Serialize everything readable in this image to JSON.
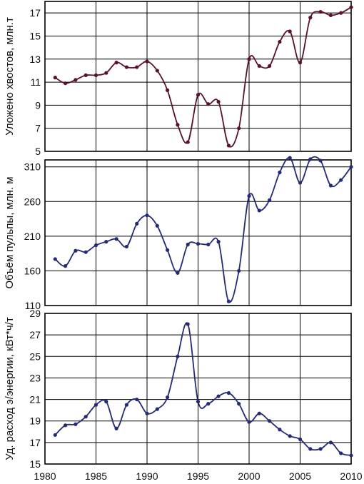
{
  "chart_data": [
    {
      "type": "line",
      "ylabel": "Уложено хвостов, млн.т",
      "ylim": [
        5,
        18
      ],
      "yticks": [
        5,
        7,
        9,
        11,
        13,
        15,
        17
      ],
      "xlim": [
        1980,
        2010
      ],
      "grid": true,
      "color": "#5a1030",
      "series": [
        {
          "x": [
            1981,
            1982,
            1983,
            1984,
            1985,
            1986,
            1987,
            1988,
            1989,
            1990,
            1991,
            1992,
            1993,
            1994,
            1995,
            1996,
            1997,
            1998,
            1999,
            2000,
            2001,
            2002,
            2003,
            2004,
            2005,
            2006,
            2007,
            2008,
            2009,
            2010
          ],
          "values": [
            11.4,
            10.9,
            11.2,
            11.6,
            11.6,
            11.8,
            12.7,
            12.3,
            12.3,
            12.8,
            12.0,
            10.3,
            7.3,
            5.8,
            9.9,
            9.1,
            9.3,
            5.5,
            7.0,
            13.0,
            12.4,
            12.4,
            14.5,
            15.4,
            12.7,
            16.6,
            17.1,
            16.8,
            17.0,
            17.5
          ]
        }
      ]
    },
    {
      "type": "line",
      "ylabel": "Объём пульпы, млн. м",
      "ylim": [
        110,
        320
      ],
      "yticks": [
        110,
        160,
        210,
        260,
        310
      ],
      "xlim": [
        1980,
        2010
      ],
      "grid": true,
      "color": "#252a75",
      "series": [
        {
          "x": [
            1981,
            1982,
            1983,
            1984,
            1985,
            1986,
            1987,
            1988,
            1989,
            1990,
            1991,
            1992,
            1993,
            1994,
            1995,
            1996,
            1997,
            1998,
            1999,
            2000,
            2001,
            2002,
            2003,
            2004,
            2005,
            2006,
            2007,
            2008,
            2009,
            2010
          ],
          "values": [
            177,
            167,
            189,
            187,
            197,
            202,
            206,
            195,
            228,
            240,
            225,
            190,
            157,
            198,
            199,
            198,
            202,
            116,
            160,
            268,
            247,
            262,
            302,
            323,
            287,
            321,
            319,
            283,
            291,
            310
          ]
        }
      ]
    },
    {
      "type": "line",
      "ylabel": "Уд. расход э/энергии, кВт*ч/т",
      "ylim": [
        15,
        29
      ],
      "yticks": [
        15,
        17,
        19,
        21,
        23,
        25,
        27,
        29
      ],
      "xlim": [
        1980,
        2010
      ],
      "xticks": [
        1980,
        1985,
        1990,
        1995,
        2000,
        2005,
        2010
      ],
      "grid": true,
      "color": "#252a75",
      "series": [
        {
          "x": [
            1981,
            1982,
            1983,
            1984,
            1985,
            1986,
            1987,
            1988,
            1989,
            1990,
            1991,
            1992,
            1993,
            1994,
            1995,
            1996,
            1997,
            1998,
            1999,
            2000,
            2001,
            2002,
            2003,
            2004,
            2005,
            2006,
            2007,
            2008,
            2009,
            2010
          ],
          "values": [
            17.7,
            18.6,
            18.7,
            19.4,
            20.5,
            20.8,
            18.3,
            20.5,
            21.0,
            19.7,
            20.1,
            21.2,
            25.0,
            28.0,
            20.8,
            20.6,
            21.3,
            21.6,
            20.6,
            18.9,
            19.7,
            19.0,
            18.2,
            17.6,
            17.3,
            16.4,
            16.4,
            17.0,
            16.0,
            15.8
          ]
        }
      ]
    }
  ]
}
